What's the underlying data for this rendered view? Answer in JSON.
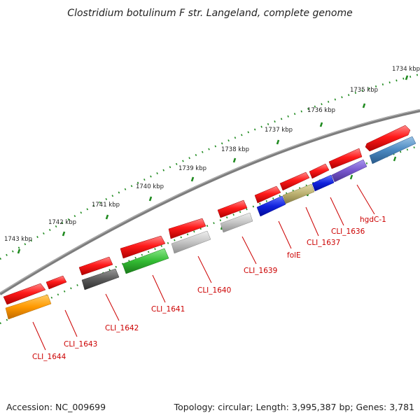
{
  "title": "Clostridium botulinum F str. Langeland, complete genome",
  "footer": {
    "accession": "Accession: NC_009699",
    "topology": "Topology: circular; Length: 3,995,387 bp; Genes: 3,781"
  },
  "scale_labels": [
    "1734 kbp",
    "1735 kbp",
    "1736 kbp",
    "1737 kbp",
    "1738 kbp",
    "1739 kbp",
    "1740 kbp",
    "1741 kbp",
    "1742 kbp",
    "1743 kbp"
  ],
  "gene_labels": [
    "hgdC-1",
    "CLI_1636",
    "CLI_1637",
    "folE",
    "CLI_1639",
    "CLI_1640",
    "CLI_1641",
    "CLI_1642",
    "CLI_1643",
    "CLI_1644"
  ],
  "colors": {
    "backbone": "#808080",
    "scale_ticks": "#1f8a1f",
    "label_lines": "#cc0000",
    "red_gene": "#ee1111",
    "orange": "#ff9900",
    "dark_gray": "#555555",
    "green": "#33bb33",
    "light_gray": "#bbbbbb",
    "blue": "#1122dd",
    "khaki": "#bbb070",
    "purple": "#7755cc",
    "steel_blue": "#4a88c0"
  }
}
